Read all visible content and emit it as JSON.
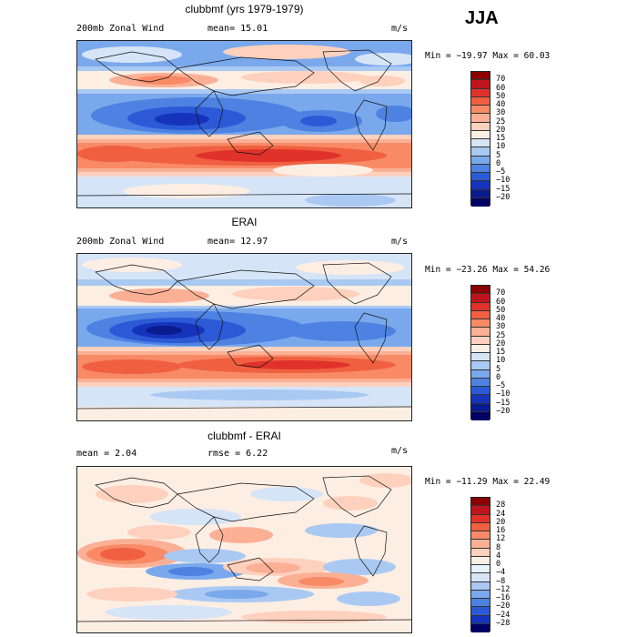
{
  "season": "JJA",
  "panels": [
    {
      "title": "clubbmf (yrs 1979-1979)",
      "left_text": "200mb Zonal Wind",
      "mid_text": "mean=  15.01",
      "units": "m/s",
      "minmax": "Min = −19.97 Max =  60.03",
      "colorbar": {
        "labels": [
          "70",
          "60",
          "50",
          "40",
          "30",
          "25",
          "20",
          "15",
          "10",
          "5",
          "0",
          "−5",
          "−10",
          "−15",
          "−20"
        ],
        "colors": [
          "#8b0000",
          "#c0141c",
          "#e0322a",
          "#f06040",
          "#f88a66",
          "#fbb096",
          "#fdd1bd",
          "#fdeee3",
          "#d6e4f7",
          "#a9c9f2",
          "#7aa8ec",
          "#4d82e2",
          "#2c5ad7",
          "#1634bb",
          "#0a1a8f",
          "#000066"
        ]
      }
    },
    {
      "title": "ERAI",
      "left_text": "200mb Zonal Wind",
      "mid_text": "mean=  12.97",
      "units": "m/s",
      "minmax": "Min = −23.26 Max =  54.26",
      "colorbar": {
        "labels": [
          "70",
          "60",
          "50",
          "40",
          "30",
          "25",
          "20",
          "15",
          "10",
          "5",
          "0",
          "−5",
          "−10",
          "−15",
          "−20"
        ],
        "colors": [
          "#8b0000",
          "#c0141c",
          "#e0322a",
          "#f06040",
          "#f88a66",
          "#fbb096",
          "#fdd1bd",
          "#fdeee3",
          "#d6e4f7",
          "#a9c9f2",
          "#7aa8ec",
          "#4d82e2",
          "#2c5ad7",
          "#1634bb",
          "#0a1a8f",
          "#000066"
        ]
      }
    },
    {
      "title": "clubbmf - ERAI",
      "left_text": "mean =   2.04",
      "mid_text": "rmse =   6.22",
      "units": "m/s",
      "minmax": "Min = −11.29 Max =  22.49",
      "colorbar": {
        "labels": [
          "28",
          "24",
          "20",
          "16",
          "12",
          "8",
          "4",
          "0",
          "−4",
          "−8",
          "−12",
          "−16",
          "−20",
          "−24",
          "−28"
        ],
        "colors": [
          "#8b0000",
          "#c0141c",
          "#e0322a",
          "#f06040",
          "#f88a66",
          "#fbb096",
          "#fdd1bd",
          "#fdeee3",
          "#e9f1fb",
          "#d6e4f7",
          "#a9c9f2",
          "#7aa8ec",
          "#4d82e2",
          "#2c5ad7",
          "#1634bb",
          "#000066"
        ]
      }
    }
  ]
}
